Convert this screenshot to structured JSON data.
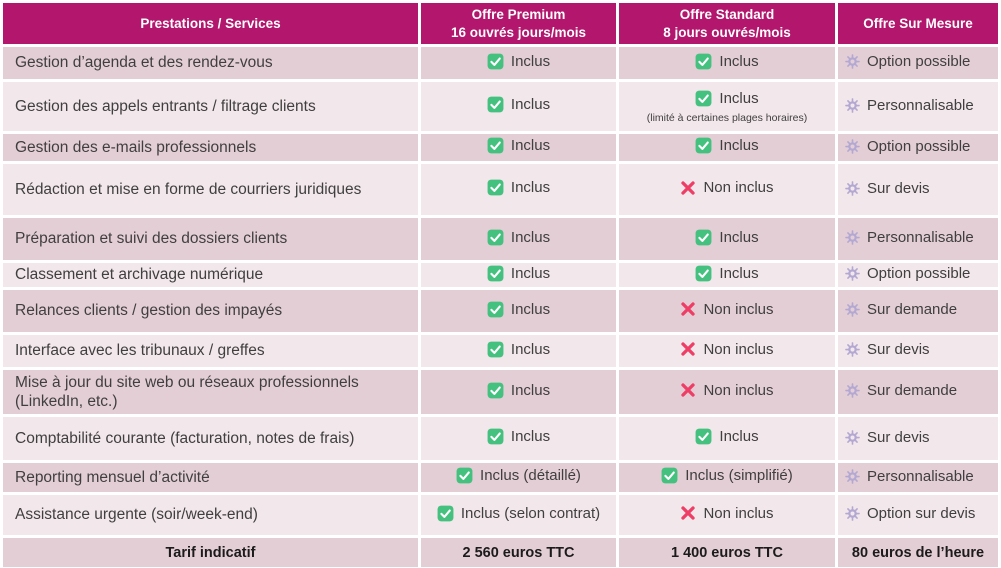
{
  "colors": {
    "header_bg": "#b2166d",
    "row_dark": "#e4ced5",
    "row_light": "#f2e7ea",
    "check_green": "#45c17f",
    "cross_red": "#ee3e66",
    "gear_purple": "#b3a8d2",
    "service_text": "#3f3f3f",
    "footer_text": "#1b1b1b",
    "header_text": "#ffffff"
  },
  "icons": {
    "included": "check-icon",
    "not_included": "cross-icon",
    "sur_mesure": "gear-icon"
  },
  "table": {
    "header": {
      "services": "Prestations / Services",
      "premium_title": "Offre Premium",
      "premium_subtitle": "16 ouvrés jours/mois",
      "standard_title": "Offre Standard",
      "standard_subtitle": "8 jours ouvrés/mois",
      "sur_mesure_title": "Offre Sur Mesure"
    },
    "rows": [
      {
        "service": "Gestion d’agenda et des rendez-vous",
        "premium": {
          "status": "included",
          "label": "Inclus"
        },
        "standard": {
          "status": "included",
          "label": "Inclus"
        },
        "sur_mesure": "Option possible"
      },
      {
        "service": "Gestion des appels entrants / filtrage clients",
        "premium": {
          "status": "included",
          "label": "Inclus"
        },
        "standard": {
          "status": "included",
          "label": "Inclus",
          "note": "(limité à certaines plages horaires)"
        },
        "sur_mesure": "Personnalisable"
      },
      {
        "service": "Gestion des e-mails professionnels",
        "premium": {
          "status": "included",
          "label": "Inclus"
        },
        "standard": {
          "status": "included",
          "label": "Inclus"
        },
        "sur_mesure": "Option possible"
      },
      {
        "service": "Rédaction et mise en forme de courriers juridiques",
        "premium": {
          "status": "included",
          "label": "Inclus"
        },
        "standard": {
          "status": "not_included",
          "label": "Non inclus"
        },
        "sur_mesure": "Sur devis"
      },
      {
        "service": "Préparation et suivi des dossiers clients",
        "premium": {
          "status": "included",
          "label": "Inclus"
        },
        "standard": {
          "status": "included",
          "label": "Inclus"
        },
        "sur_mesure": "Personnalisable"
      },
      {
        "service": "Classement et archivage numérique",
        "premium": {
          "status": "included",
          "label": "Inclus"
        },
        "standard": {
          "status": "included",
          "label": "Inclus"
        },
        "sur_mesure": "Option possible"
      },
      {
        "service": "Relances clients / gestion des impayés",
        "premium": {
          "status": "included",
          "label": "Inclus"
        },
        "standard": {
          "status": "not_included",
          "label": "Non inclus"
        },
        "sur_mesure": "Sur demande"
      },
      {
        "service": "Interface avec les tribunaux / greffes",
        "premium": {
          "status": "included",
          "label": "Inclus"
        },
        "standard": {
          "status": "not_included",
          "label": "Non inclus"
        },
        "sur_mesure": "Sur devis"
      },
      {
        "service": "Mise à jour du site web ou réseaux professionnels (LinkedIn, etc.)",
        "premium": {
          "status": "included",
          "label": "Inclus"
        },
        "standard": {
          "status": "not_included",
          "label": "Non inclus"
        },
        "sur_mesure": "Sur demande"
      },
      {
        "service": "Comptabilité courante (facturation, notes de frais)",
        "premium": {
          "status": "included",
          "label": "Inclus"
        },
        "standard": {
          "status": "included",
          "label": "Inclus"
        },
        "sur_mesure": "Sur devis"
      },
      {
        "service": "Reporting mensuel d’activité",
        "premium": {
          "status": "included",
          "label": "Inclus (détaillé)"
        },
        "standard": {
          "status": "included",
          "label": "Inclus (simplifié)"
        },
        "sur_mesure": "Personnalisable"
      },
      {
        "service": "Assistance urgente (soir/week-end)",
        "premium": {
          "status": "included",
          "label": "Inclus (selon contrat)"
        },
        "standard": {
          "status": "not_included",
          "label": "Non inclus"
        },
        "sur_mesure": "Option sur devis"
      }
    ],
    "footer": {
      "label": "Tarif indicatif",
      "premium_price": "2 560 euros TTC",
      "standard_price": "1 400 euros TTC",
      "sur_mesure_price": "80 euros de l’heure"
    }
  }
}
